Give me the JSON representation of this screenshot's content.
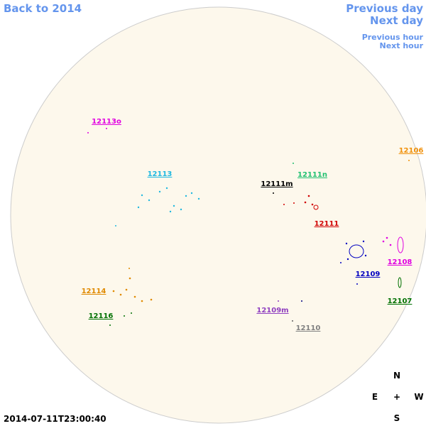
{
  "nav": {
    "back": "Back to 2014",
    "previous_day": "Previous day",
    "next_day": "Next day",
    "previous_hour": "Previous hour",
    "next_hour": "Next hour"
  },
  "regions": [
    "12113o",
    "12106",
    "12113",
    "12111m",
    "12111n",
    "12111",
    "12108",
    "12109",
    "12114",
    "12107",
    "12116",
    "12109m",
    "12110"
  ],
  "compass": {
    "north": "N",
    "east": "E",
    "center": "+",
    "west": "W",
    "south": "S"
  },
  "timestamp": "2014-07-11T23:00:40"
}
